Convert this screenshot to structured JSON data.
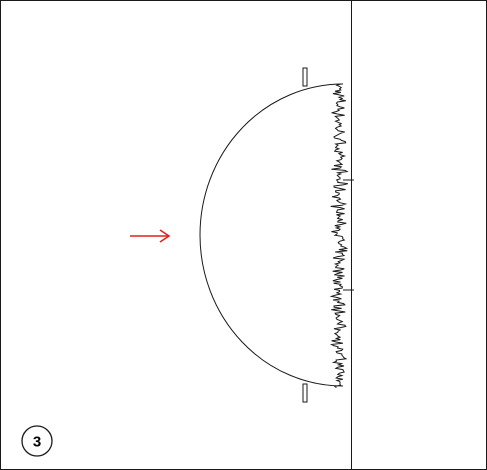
{
  "step": {
    "number": "3"
  },
  "colors": {
    "line": "#1a1a1a",
    "arrow": "#e0201c",
    "background": "#ffffff"
  },
  "icons": {
    "direction_arrow": "arrow-right-icon"
  }
}
